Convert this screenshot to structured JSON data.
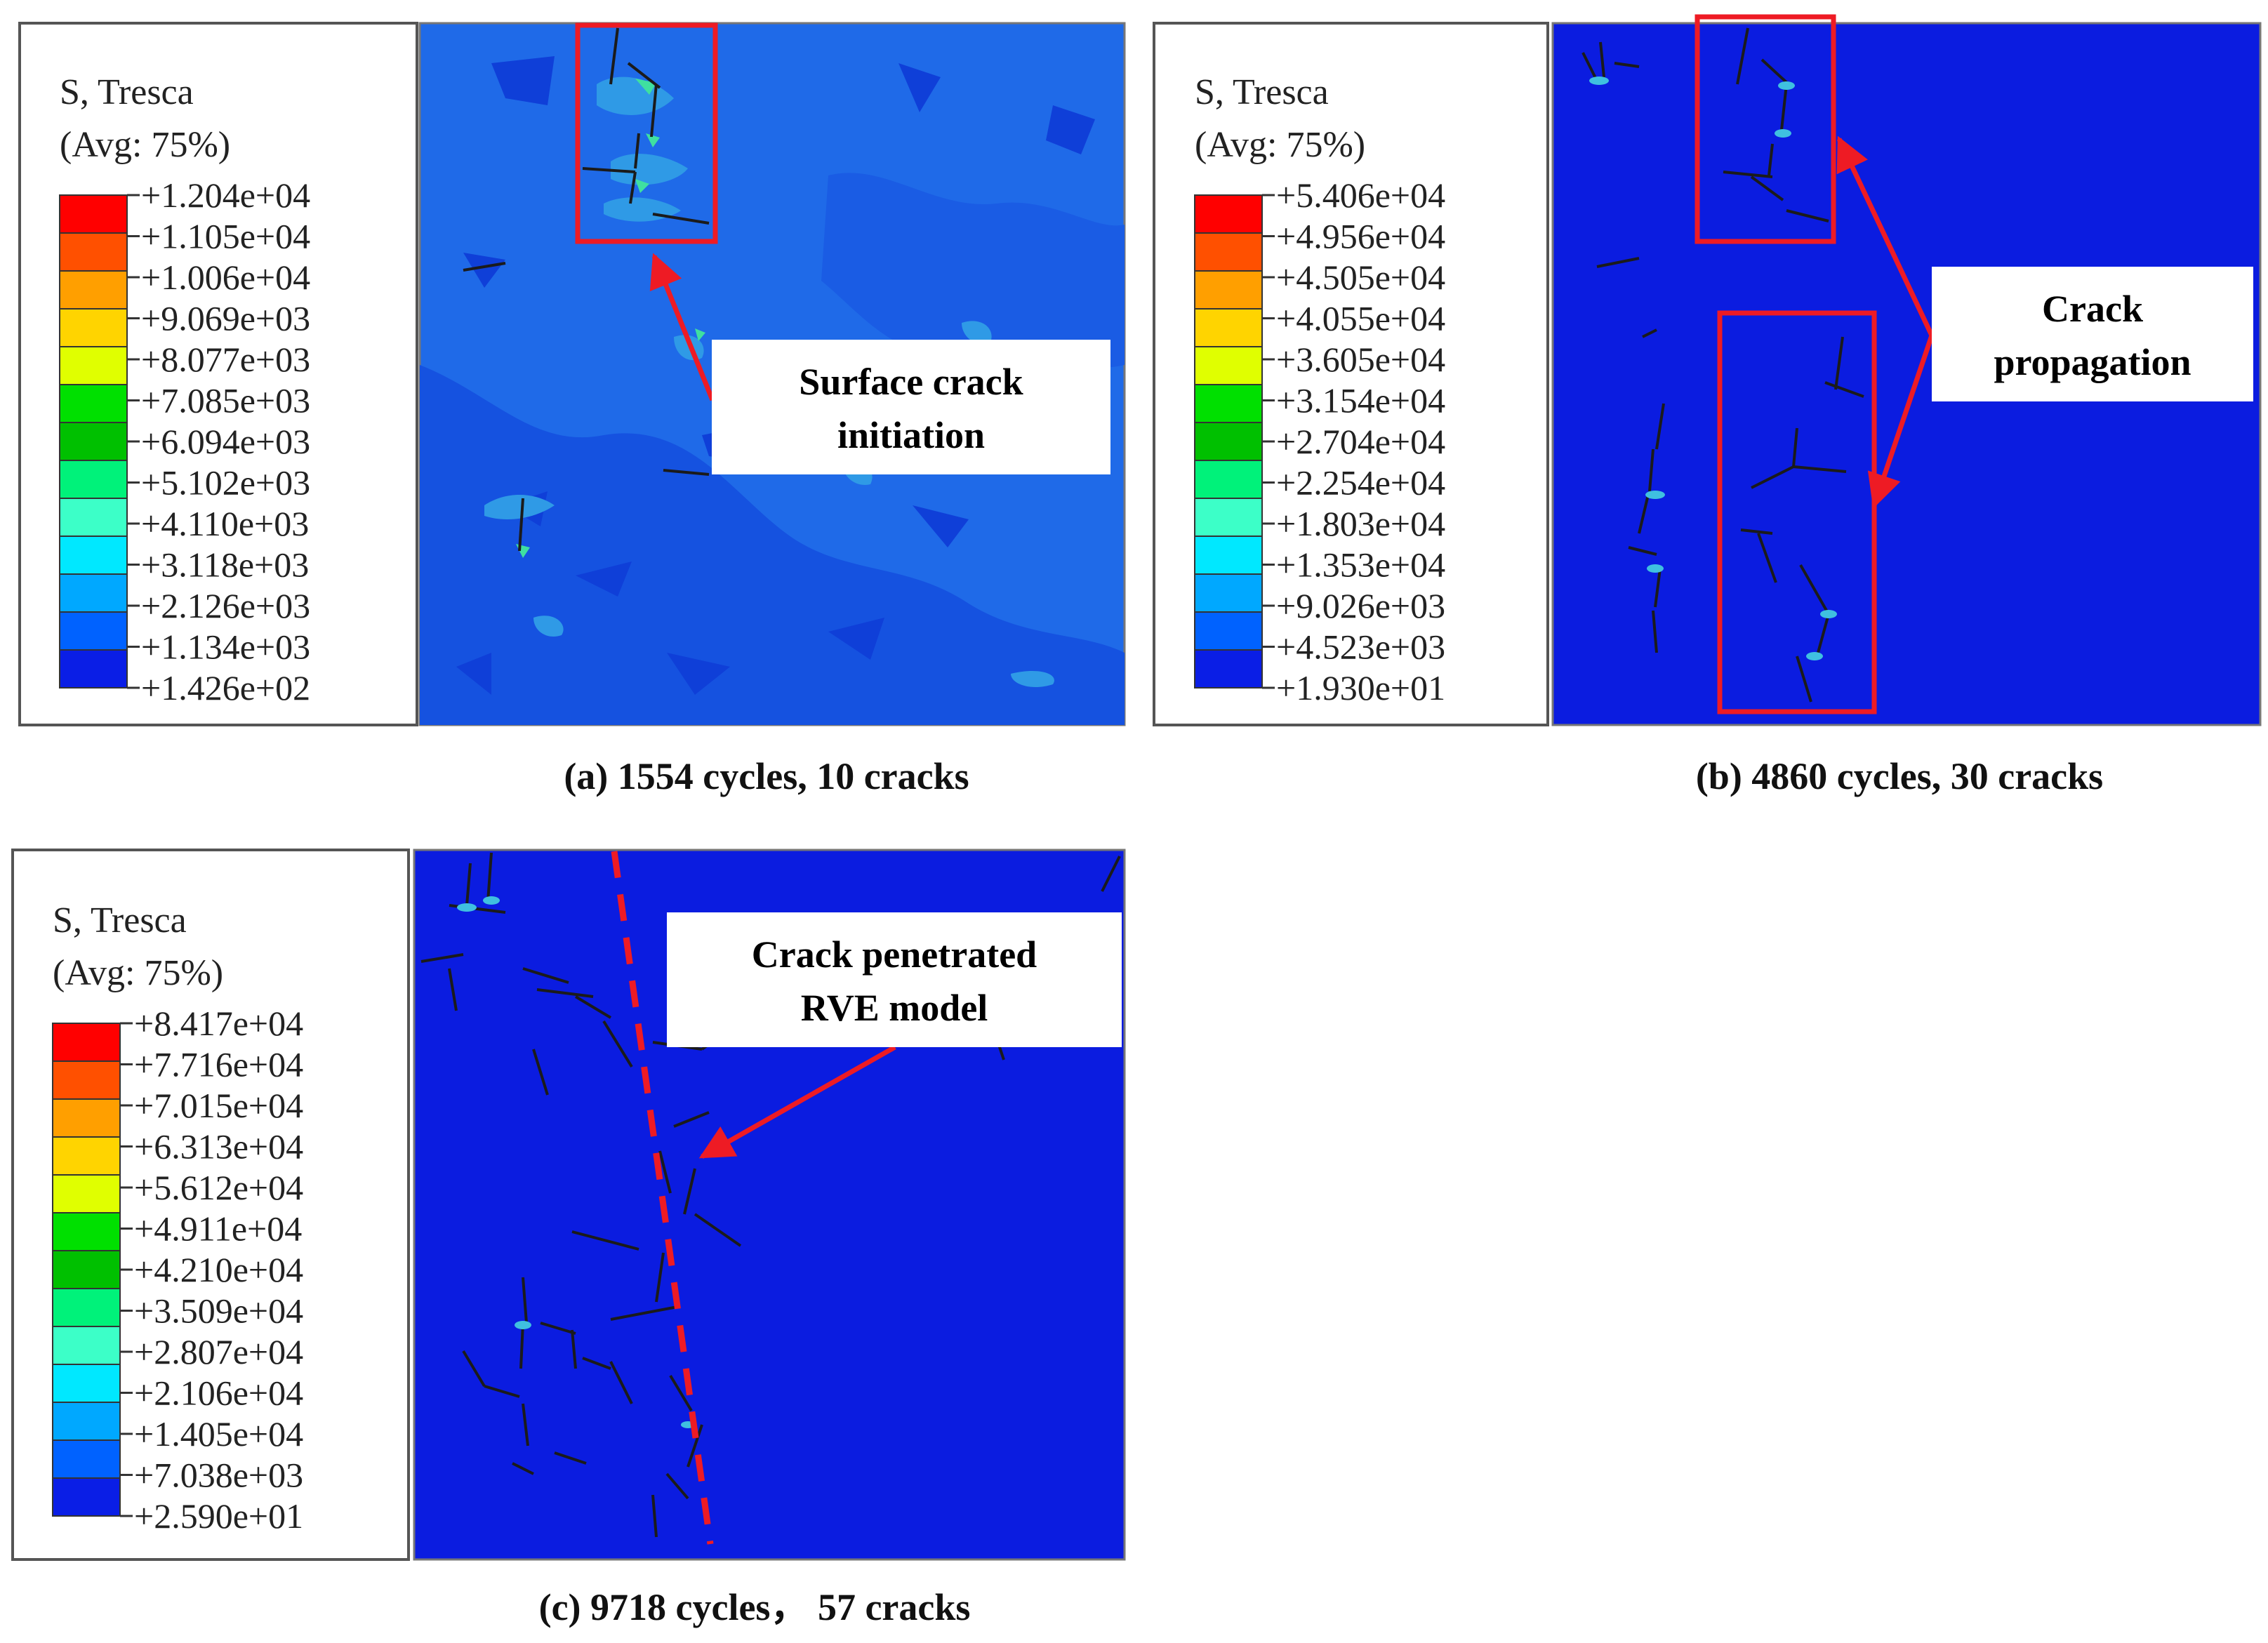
{
  "colors": {
    "band_colors": [
      "#ff0000",
      "#ff5000",
      "#ff9f00",
      "#ffd400",
      "#e0ff00",
      "#00e000",
      "#00c000",
      "#00f27a",
      "#3cffc8",
      "#00e8ff",
      "#00a8ff",
      "#0062ff",
      "#0a1ee6"
    ],
    "field_blue": "#0b1ce0",
    "field_mid": "#1f6ae8",
    "field_light": "#2f9ae6",
    "crack_line": "#1b1b1b",
    "highlight_red": "#ee1b24"
  },
  "panels": [
    {
      "id": "a",
      "legend": {
        "title_line1": "S, Tresca",
        "title_line2": "(Avg: 75%)",
        "ticks": [
          "+1.204e+04",
          "+1.105e+04",
          "+1.006e+04",
          "+9.069e+03",
          "+8.077e+03",
          "+7.085e+03",
          "+6.094e+03",
          "+5.102e+03",
          "+4.110e+03",
          "+3.118e+03",
          "+2.126e+03",
          "+1.134e+03",
          "+1.426e+02"
        ]
      },
      "caption": "(a) 1554 cycles, 10 cracks",
      "callout": {
        "line1": "Surface crack",
        "line2": "initiation"
      }
    },
    {
      "id": "b",
      "legend": {
        "title_line1": "S, Tresca",
        "title_line2": "(Avg: 75%)",
        "ticks": [
          "+5.406e+04",
          "+4.956e+04",
          "+4.505e+04",
          "+4.055e+04",
          "+3.605e+04",
          "+3.154e+04",
          "+2.704e+04",
          "+2.254e+04",
          "+1.803e+04",
          "+1.353e+04",
          "+9.026e+03",
          "+4.523e+03",
          "+1.930e+01"
        ]
      },
      "caption": "(b) 4860 cycles, 30 cracks",
      "callout": {
        "line1": "Crack",
        "line2": "propagation"
      }
    },
    {
      "id": "c",
      "legend": {
        "title_line1": "S, Tresca",
        "title_line2": "(Avg: 75%)",
        "ticks": [
          "+8.417e+04",
          "+7.716e+04",
          "+7.015e+04",
          "+6.313e+04",
          "+5.612e+04",
          "+4.911e+04",
          "+4.210e+04",
          "+3.509e+04",
          "+2.807e+04",
          "+2.106e+04",
          "+1.405e+04",
          "+7.038e+03",
          "+2.590e+01"
        ]
      },
      "caption": "(c) 9718 cycles， 57 cracks",
      "callout": {
        "line1": "Crack penetrated",
        "line2": "RVE model"
      }
    }
  ]
}
